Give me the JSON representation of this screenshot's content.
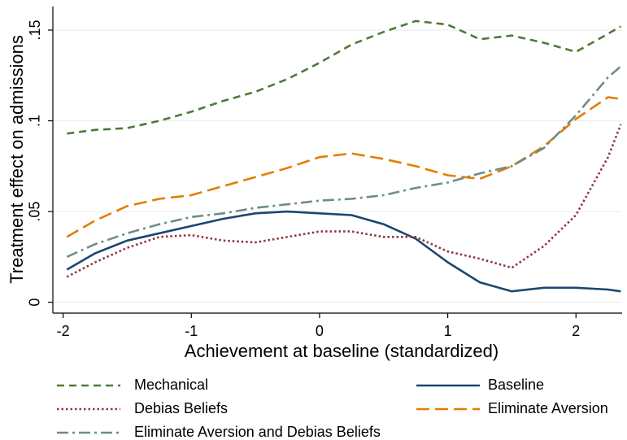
{
  "chart_data": {
    "type": "line",
    "y_label": "Treatment effect on admissions",
    "x_label": "Achievement at baseline (standardized)",
    "x": [
      -1.97,
      -1.75,
      -1.5,
      -1.25,
      -1,
      -0.75,
      -0.5,
      -0.25,
      0,
      0.25,
      0.5,
      0.75,
      1,
      1.25,
      1.5,
      1.75,
      2,
      2.25,
      2.35
    ],
    "xlim": [
      -2.08,
      2.36
    ],
    "xticks": [
      -2,
      -1,
      0,
      1,
      2
    ],
    "ylim": [
      -0.006,
      0.163
    ],
    "yticks": [
      0,
      {
        "value": 0.05,
        "label": ".05"
      },
      {
        "value": 0.1,
        "label": ".1"
      },
      {
        "value": 0.15,
        "label": ".15"
      }
    ],
    "grid": true,
    "series": [
      {
        "name": "Mechanical",
        "color": "#4f7a36",
        "style": "dashed",
        "values": [
          0.093,
          0.095,
          0.096,
          0.1,
          0.105,
          0.111,
          0.116,
          0.123,
          0.132,
          0.142,
          0.149,
          0.155,
          0.153,
          0.145,
          0.147,
          0.143,
          0.138,
          0.148,
          0.152
        ]
      },
      {
        "name": "Baseline",
        "color": "#1a476f",
        "style": "solid",
        "values": [
          0.018,
          0.027,
          0.034,
          0.038,
          0.042,
          0.046,
          0.049,
          0.05,
          0.049,
          0.048,
          0.043,
          0.035,
          0.022,
          0.011,
          0.006,
          0.008,
          0.008,
          0.007,
          0.006
        ]
      },
      {
        "name": "Debias Beliefs",
        "color": "#90353b",
        "style": "dotted",
        "values": [
          0.014,
          0.022,
          0.03,
          0.036,
          0.037,
          0.034,
          0.033,
          0.036,
          0.039,
          0.039,
          0.036,
          0.036,
          0.028,
          0.024,
          0.019,
          0.031,
          0.048,
          0.08,
          0.098
        ]
      },
      {
        "name": "Eliminate Aversion",
        "color": "#e37e00",
        "style": "longdash",
        "values": [
          0.036,
          0.045,
          0.053,
          0.057,
          0.059,
          0.064,
          0.069,
          0.074,
          0.08,
          0.082,
          0.079,
          0.075,
          0.07,
          0.068,
          0.075,
          0.086,
          0.101,
          0.113,
          0.112
        ]
      },
      {
        "name": "Eliminate Aversion and Debias Beliefs",
        "color": "#6e8e84",
        "style": "dashdot",
        "values": [
          0.025,
          0.032,
          0.038,
          0.043,
          0.047,
          0.049,
          0.052,
          0.054,
          0.056,
          0.057,
          0.059,
          0.063,
          0.066,
          0.071,
          0.075,
          0.085,
          0.103,
          0.124,
          0.13
        ]
      }
    ]
  }
}
